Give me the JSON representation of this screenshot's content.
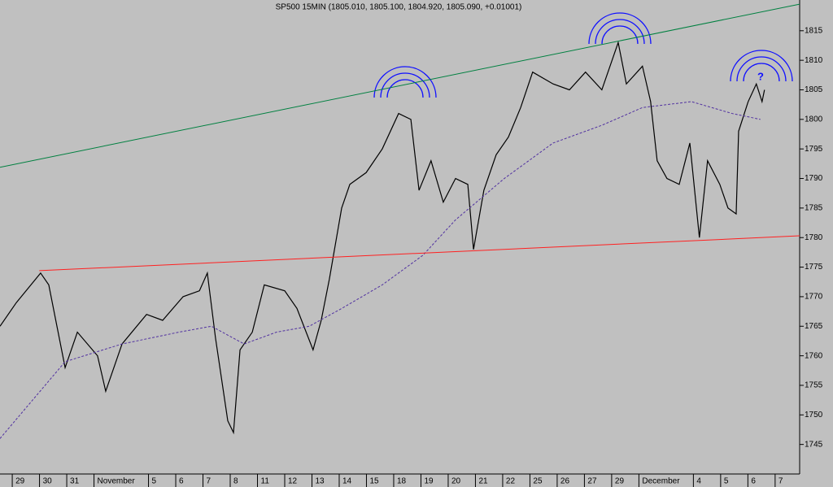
{
  "chart_data": {
    "type": "line",
    "title": "SP500 15MIN (1805.010, 1805.100, 1804.920, 1805.090, +0.01001)",
    "annotation": "?",
    "xlim": [
      -0.45,
      28.9
    ],
    "ylim": [
      1740,
      1820.2
    ],
    "yticks": [
      1745,
      1750,
      1755,
      1760,
      1765,
      1770,
      1775,
      1780,
      1785,
      1790,
      1795,
      1800,
      1805,
      1810,
      1815
    ],
    "xticks": [
      {
        "value": 0,
        "label": "29"
      },
      {
        "value": 1,
        "label": "30"
      },
      {
        "value": 2,
        "label": "31"
      },
      {
        "value": 3,
        "label": "November"
      },
      {
        "value": 5,
        "label": "5"
      },
      {
        "value": 6,
        "label": "6"
      },
      {
        "value": 7,
        "label": "7"
      },
      {
        "value": 8,
        "label": "8"
      },
      {
        "value": 9,
        "label": "11"
      },
      {
        "value": 10,
        "label": "12"
      },
      {
        "value": 11,
        "label": "13"
      },
      {
        "value": 12,
        "label": "14"
      },
      {
        "value": 13,
        "label": "15"
      },
      {
        "value": 14,
        "label": "18"
      },
      {
        "value": 15,
        "label": "19"
      },
      {
        "value": 16,
        "label": "20"
      },
      {
        "value": 17,
        "label": "21"
      },
      {
        "value": 18,
        "label": "22"
      },
      {
        "value": 19,
        "label": "25"
      },
      {
        "value": 20,
        "label": "26"
      },
      {
        "value": 21,
        "label": "27"
      },
      {
        "value": 22,
        "label": "29"
      },
      {
        "value": 23,
        "label": "December"
      },
      {
        "value": 25,
        "label": "4"
      },
      {
        "value": 26,
        "label": "5"
      },
      {
        "value": 27,
        "label": "6"
      },
      {
        "value": 28,
        "label": "7"
      }
    ],
    "series": [
      {
        "color": "#000000",
        "dashed": false,
        "width": 1.2,
        "x": [
          -0.45,
          0.15,
          1.04,
          1.34,
          1.94,
          2.39,
          3.13,
          3.43,
          4.03,
          4.93,
          5.52,
          6.27,
          6.87,
          7.16,
          7.46,
          7.91,
          8.12,
          8.36,
          8.81,
          9.25,
          10,
          10.45,
          11.04,
          11.34,
          11.64,
          12.09,
          12.39,
          12.99,
          13.58,
          14.18,
          14.63,
          14.93,
          15.37,
          15.82,
          16.27,
          16.72,
          16.93,
          17.31,
          17.76,
          18.21,
          18.66,
          19.1,
          19.85,
          20.45,
          21.04,
          21.64,
          22.24,
          22.54,
          23.13,
          23.43,
          23.67,
          24.03,
          24.48,
          24.87,
          25.22,
          25.52,
          25.97,
          26.27,
          26.57,
          26.66,
          27.01,
          27.31,
          27.52,
          27.61
        ],
        "values": [
          1765,
          1769,
          1774,
          1772,
          1758,
          1764,
          1760,
          1754,
          1762,
          1767,
          1766,
          1770,
          1771,
          1774,
          1763,
          1749,
          1747,
          1761,
          1764,
          1772,
          1771,
          1768,
          1761,
          1766,
          1773,
          1785,
          1789,
          1791,
          1795,
          1801,
          1800,
          1788,
          1793,
          1786,
          1790,
          1789,
          1778,
          1788,
          1794,
          1797,
          1802,
          1808,
          1806,
          1805,
          1808,
          1805,
          1813,
          1806,
          1809,
          1803,
          1793,
          1790,
          1789,
          1796,
          1780,
          1793,
          1789,
          1785,
          1784,
          1798,
          1803,
          1806,
          1803,
          1805
        ]
      },
      {
        "color": "#5030a0",
        "dashed": true,
        "width": 1,
        "x": [
          -0.45,
          1.94,
          4.03,
          6.12,
          7.31,
          8.51,
          9.7,
          10.9,
          12.09,
          13.58,
          15.07,
          16.27,
          18.06,
          19.85,
          21.64,
          23.13,
          24.93,
          26.42,
          27.46
        ],
        "values": [
          1746,
          1759,
          1762,
          1764,
          1765,
          1762,
          1764,
          1765,
          1768,
          1772,
          1777,
          1783,
          1790,
          1796,
          1799,
          1802,
          1803,
          1801,
          1800
        ]
      },
      {
        "color": "#008040",
        "dashed": false,
        "width": 1,
        "x": [
          -0.45,
          28.9
        ],
        "values": [
          1791.9,
          1819.5
        ]
      },
      {
        "color": "#ff2020",
        "dashed": false,
        "width": 1,
        "x": [
          0.99,
          28.9
        ],
        "values": [
          1774.4,
          1780.3
        ]
      }
    ]
  }
}
